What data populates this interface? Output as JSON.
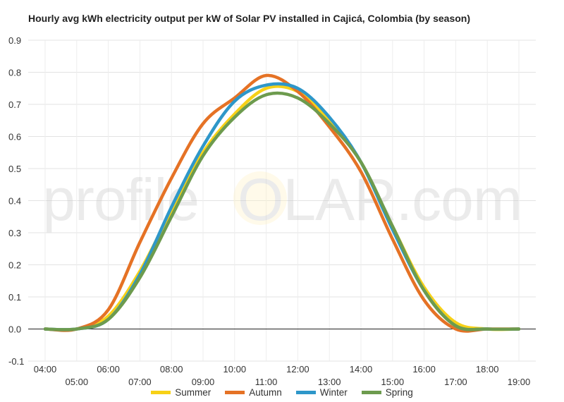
{
  "chart_data": {
    "type": "line",
    "title": "Hourly avg kWh electricity output per kW of Solar PV installed in Cajicá, Colombia (by season)",
    "xlabel": "",
    "ylabel": "",
    "ylim": [
      -0.1,
      0.9
    ],
    "yticks": [
      "-0.1",
      "0.0",
      "0.1",
      "0.2",
      "0.3",
      "0.4",
      "0.5",
      "0.6",
      "0.7",
      "0.8",
      "0.9"
    ],
    "xticks_top": [
      "04:00",
      "06:00",
      "08:00",
      "10:00",
      "12:00",
      "14:00",
      "16:00",
      "18:00"
    ],
    "xticks_bottom": [
      "05:00",
      "07:00",
      "09:00",
      "11:00",
      "13:00",
      "15:00",
      "17:00",
      "19:00"
    ],
    "x": [
      "04:00",
      "05:00",
      "06:00",
      "07:00",
      "08:00",
      "09:00",
      "10:00",
      "11:00",
      "12:00",
      "13:00",
      "14:00",
      "15:00",
      "16:00",
      "17:00",
      "18:00",
      "19:00"
    ],
    "series": [
      {
        "name": "Summer",
        "color": "#f7d117",
        "values": [
          0.0,
          0.0,
          0.04,
          0.18,
          0.37,
          0.55,
          0.67,
          0.75,
          0.74,
          0.65,
          0.52,
          0.32,
          0.13,
          0.02,
          0.0,
          0.0
        ]
      },
      {
        "name": "Autumn",
        "color": "#e57225",
        "values": [
          0.0,
          0.0,
          0.06,
          0.27,
          0.47,
          0.64,
          0.72,
          0.79,
          0.74,
          0.63,
          0.49,
          0.28,
          0.09,
          0.0,
          0.0,
          0.0
        ]
      },
      {
        "name": "Winter",
        "color": "#2e97c9",
        "values": [
          0.0,
          0.0,
          0.03,
          0.17,
          0.38,
          0.57,
          0.71,
          0.76,
          0.75,
          0.66,
          0.52,
          0.31,
          0.12,
          0.01,
          0.0,
          0.0
        ]
      },
      {
        "name": "Spring",
        "color": "#6d9b4e",
        "values": [
          0.0,
          0.0,
          0.03,
          0.16,
          0.35,
          0.54,
          0.66,
          0.73,
          0.72,
          0.64,
          0.52,
          0.32,
          0.12,
          0.01,
          0.0,
          0.0
        ]
      }
    ],
    "grid": true,
    "legend_position": "bottom"
  },
  "watermark": {
    "left": "profile",
    "sun": "S",
    "right": "OLAR.com"
  }
}
